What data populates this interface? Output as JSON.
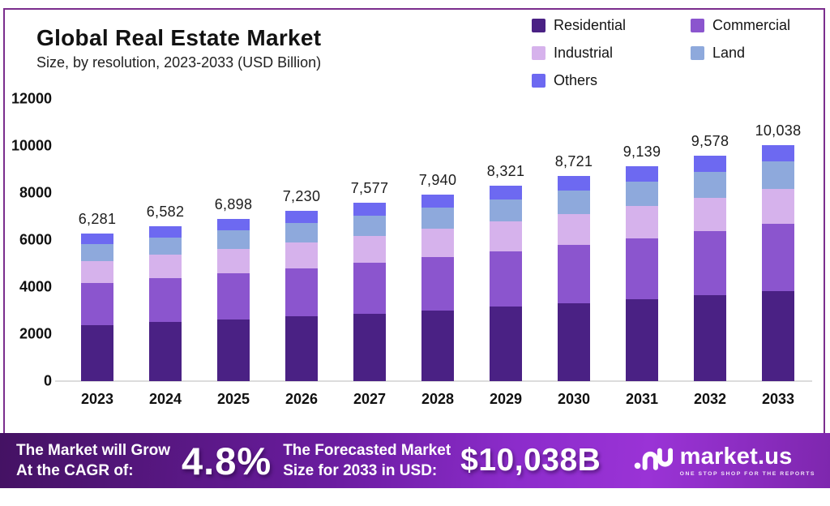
{
  "header": {
    "title": "Global Real Estate Market",
    "subtitle": "Size, by resolution, 2023-2033 (USD Billion)"
  },
  "colors": {
    "frame_border": "#7b2e8d",
    "residential": "#4a2184",
    "commercial": "#8b55ce",
    "industrial": "#d6b2ec",
    "land": "#8ea9dc",
    "others": "#6d69f1",
    "banner_gradient_start": "#441263",
    "banner_gradient_end": "#7e27ae",
    "baseline": "#dcdcdc"
  },
  "legend": [
    {
      "label": "Residential",
      "color": "#4a2184"
    },
    {
      "label": "Commercial",
      "color": "#8b55ce"
    },
    {
      "label": "Industrial",
      "color": "#d6b2ec"
    },
    {
      "label": "Land",
      "color": "#8ea9dc"
    },
    {
      "label": "Others",
      "color": "#6d69f1"
    }
  ],
  "chart_data": {
    "type": "bar",
    "stacked": true,
    "title": "Global Real Estate Market",
    "subtitle": "Size, by resolution, 2023-2033 (USD Billion)",
    "xlabel": "",
    "ylabel": "USD Billion",
    "ylim": [
      0,
      12000
    ],
    "y_ticks": [
      0,
      2000,
      4000,
      6000,
      8000,
      10000,
      12000
    ],
    "grid": false,
    "legend_position": "top-right",
    "categories": [
      "2023",
      "2024",
      "2025",
      "2026",
      "2027",
      "2028",
      "2029",
      "2030",
      "2031",
      "2032",
      "2033"
    ],
    "series": [
      {
        "name": "Residential",
        "color": "#4a2184",
        "values": [
          2387,
          2501,
          2621,
          2747,
          2879,
          3017,
          3162,
          3314,
          3473,
          3640,
          3814
        ]
      },
      {
        "name": "Commercial",
        "color": "#8b55ce",
        "values": [
          1790,
          1876,
          1966,
          2061,
          2159,
          2263,
          2372,
          2485,
          2605,
          2730,
          2861
        ]
      },
      {
        "name": "Industrial",
        "color": "#d6b2ec",
        "values": [
          942,
          987,
          1035,
          1085,
          1137,
          1191,
          1248,
          1308,
          1371,
          1437,
          1506
        ]
      },
      {
        "name": "Land",
        "color": "#8ea9dc",
        "values": [
          722,
          757,
          793,
          831,
          871,
          913,
          957,
          1003,
          1051,
          1101,
          1154
        ]
      },
      {
        "name": "Others",
        "color": "#6d69f1",
        "values": [
          440,
          461,
          483,
          506,
          531,
          556,
          582,
          611,
          639,
          670,
          703
        ]
      }
    ],
    "totals": [
      6281,
      6582,
      6898,
      7230,
      7577,
      7940,
      8321,
      8721,
      9139,
      9578,
      10038
    ],
    "total_labels": [
      "6,281",
      "6,582",
      "6,898",
      "7,230",
      "7,577",
      "7,940",
      "8,321",
      "8,721",
      "9,139",
      "9,578",
      "10,038"
    ]
  },
  "banner": {
    "cagr_label_1": "The Market will Grow",
    "cagr_label_2": "At the CAGR of:",
    "cagr_value": "4.8%",
    "forecast_label_1": "The Forecasted Market",
    "forecast_label_2": "Size for 2033 in USD:",
    "forecast_value": "$10,038B",
    "logo_text": "market.us",
    "logo_tagline": "ONE STOP SHOP FOR THE REPORTS"
  }
}
